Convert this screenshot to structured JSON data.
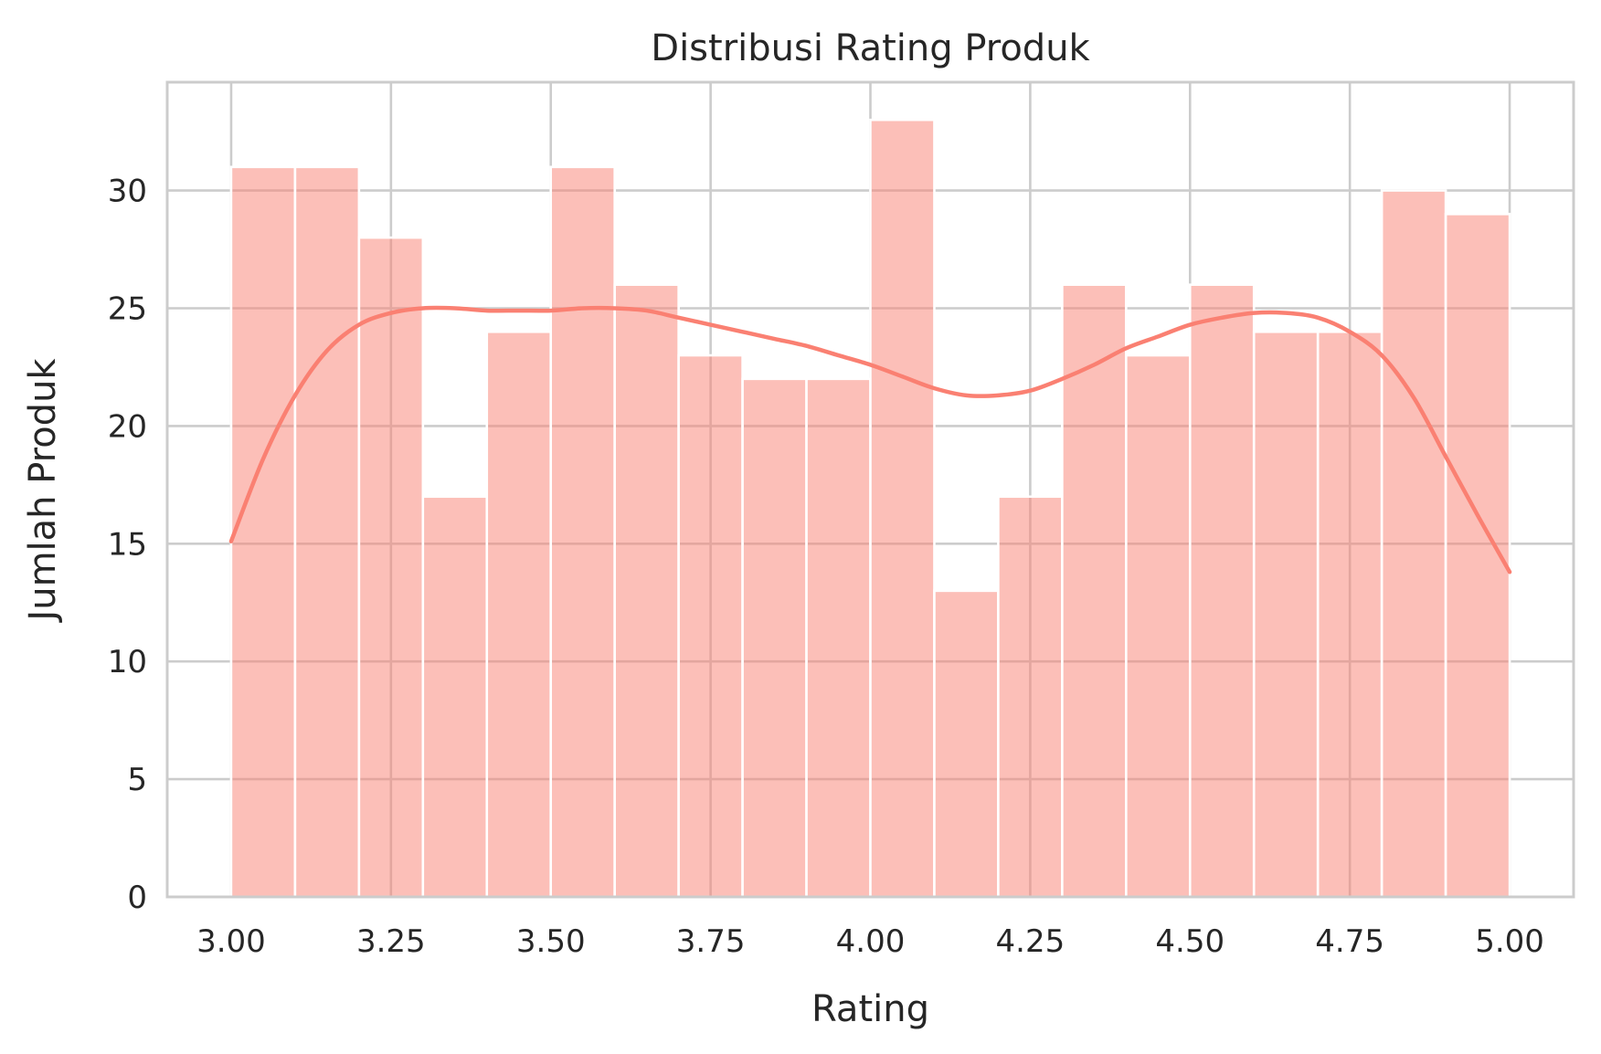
{
  "chart_data": {
    "type": "histogram",
    "title": "Distribusi Rating Produk",
    "xlabel": "Rating",
    "ylabel": "Jumlah Produk",
    "xlim": [
      2.9,
      5.1
    ],
    "ylim": [
      0,
      34.6
    ],
    "xticks": [
      "3.00",
      "3.25",
      "3.50",
      "3.75",
      "4.00",
      "4.25",
      "4.50",
      "4.75",
      "5.00"
    ],
    "yticks": [
      "0",
      "5",
      "10",
      "15",
      "20",
      "25",
      "30"
    ],
    "grid": true,
    "bins": {
      "edges": [
        3.0,
        3.1,
        3.2,
        3.3,
        3.4,
        3.5,
        3.6,
        3.7,
        3.8,
        3.9,
        4.0,
        4.1,
        4.2,
        4.3,
        4.4,
        4.5,
        4.6,
        4.7,
        4.8,
        4.9,
        5.0
      ],
      "counts": [
        31,
        31,
        28,
        17,
        24,
        31,
        26,
        23,
        22,
        22,
        33,
        13,
        17,
        26,
        23,
        26,
        24,
        24,
        30,
        29
      ]
    },
    "kde": {
      "x": [
        3.0,
        3.05,
        3.1,
        3.15,
        3.2,
        3.25,
        3.3,
        3.35,
        3.4,
        3.45,
        3.5,
        3.55,
        3.6,
        3.65,
        3.7,
        3.75,
        3.8,
        3.85,
        3.9,
        3.95,
        4.0,
        4.05,
        4.1,
        4.15,
        4.2,
        4.25,
        4.3,
        4.35,
        4.4,
        4.45,
        4.5,
        4.55,
        4.6,
        4.65,
        4.7,
        4.75,
        4.8,
        4.85,
        4.9,
        4.95,
        5.0
      ],
      "y": [
        15.1,
        18.6,
        21.3,
        23.2,
        24.3,
        24.8,
        25.0,
        25.0,
        24.9,
        24.9,
        24.9,
        25.0,
        25.0,
        24.9,
        24.6,
        24.3,
        24.0,
        23.7,
        23.4,
        23.0,
        22.6,
        22.1,
        21.6,
        21.3,
        21.3,
        21.5,
        22.0,
        22.6,
        23.3,
        23.8,
        24.3,
        24.6,
        24.8,
        24.8,
        24.6,
        24.0,
        23.0,
        21.2,
        18.7,
        16.2,
        13.8
      ],
      "color": "#fa8072"
    },
    "bar_color": "#fa8072"
  }
}
